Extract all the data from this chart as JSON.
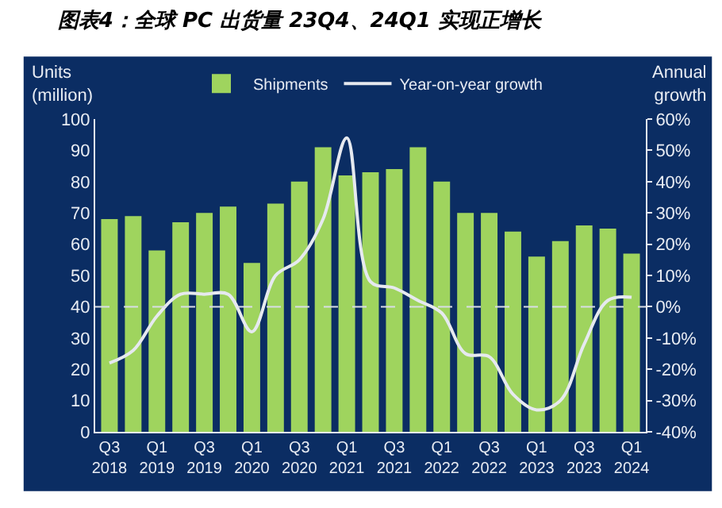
{
  "chart_data": {
    "type": "bar",
    "title": "图表4：全球 PC 出货量 23Q4、24Q1 实现正增长",
    "ylabel": "Units\n(million)",
    "y2label": "Annual\ngrowth",
    "categories": [
      "Q3\n2018",
      null,
      "Q1\n2019",
      null,
      "Q3\n2019",
      null,
      "Q1\n2020",
      null,
      "Q3\n2020",
      null,
      "Q1\n2021",
      null,
      "Q3\n2021",
      null,
      "Q1\n2022",
      null,
      "Q3\n2022",
      null,
      "Q1\n2023",
      null,
      "Q3\n2023",
      null,
      "Q1\n2024"
    ],
    "series": [
      {
        "name": "Shipments",
        "color": "#9fd45e",
        "values": [
          68,
          69,
          58,
          67,
          70,
          72,
          54,
          73,
          80,
          91,
          82,
          83,
          84,
          91,
          80,
          70,
          70,
          64,
          56,
          61,
          66,
          65,
          57
        ]
      },
      {
        "name": "Year-on-year growth",
        "type": "line",
        "axis": "y2",
        "color": "#e6e9ef",
        "values": [
          -18,
          -14,
          -3,
          4,
          4,
          4,
          -8,
          10,
          15,
          28,
          54,
          8,
          6,
          2,
          -2,
          -15,
          -16,
          -28,
          -33,
          -30,
          -12,
          2,
          3
        ]
      }
    ],
    "ylim": [
      0,
      100
    ],
    "yticks": [
      0,
      10,
      20,
      30,
      40,
      50,
      60,
      70,
      80,
      90,
      100
    ],
    "y2lim": [
      -40,
      60
    ],
    "y2ticks": [
      {
        "value": -40,
        "label": "-40%"
      },
      {
        "value": -30,
        "label": "-30%"
      },
      {
        "value": -20,
        "label": "-20%"
      },
      {
        "value": -10,
        "label": "-10%"
      },
      {
        "value": 0,
        "label": "0%"
      },
      {
        "value": 10,
        "label": "10%"
      },
      {
        "value": 20,
        "label": "20%"
      },
      {
        "value": 30,
        "label": "30%"
      },
      {
        "value": 40,
        "label": "40%"
      },
      {
        "value": 50,
        "label": "50%"
      },
      {
        "value": 60,
        "label": "60%"
      }
    ],
    "ref_lines": [
      {
        "axis": "y2",
        "value": 0,
        "color": "#d9dde6",
        "line_style": "dashed"
      }
    ],
    "legend": "top",
    "grid": false
  }
}
